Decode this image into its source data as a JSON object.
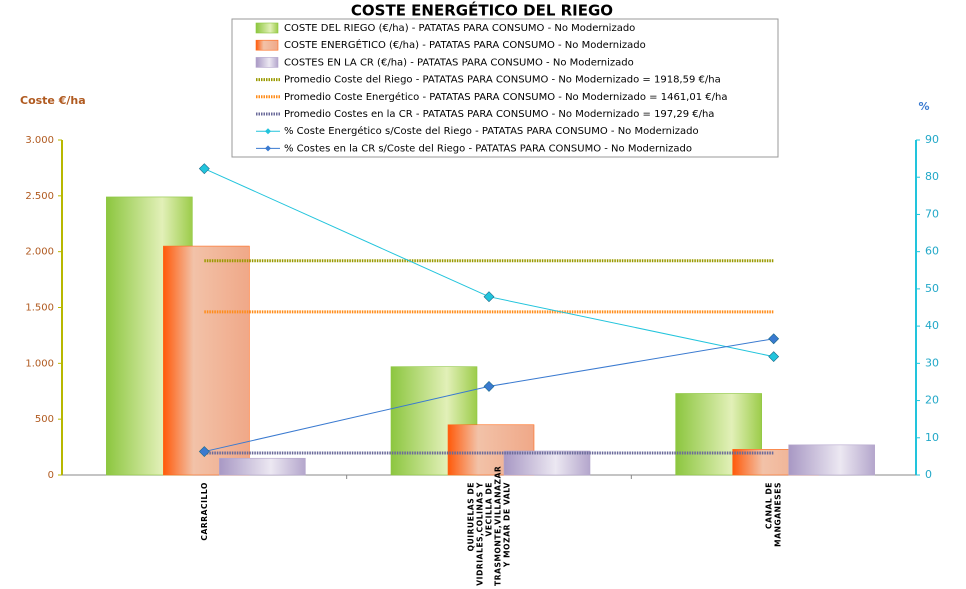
{
  "chart_data": {
    "type": "bar",
    "title": "COSTE ENERGÉTICO DEL RIEGO",
    "ylabel": "Coste €/ha",
    "y2label": "%",
    "categories": [
      "CARRACILLO",
      "QUIRUELAS DE VIDRIALES,COLINAS Y VECILLA DE TRASMONTE,VILLANAZAR Y MOZAR DE VALV",
      "CANAL DE MANGANESES"
    ],
    "ylim": [
      0,
      3000
    ],
    "yticks": [
      0,
      500,
      {
        "value": 1000,
        "label": "1.000"
      },
      {
        "value": 1500,
        "label": "1.500"
      },
      {
        "value": 2000,
        "label": "2.000"
      },
      {
        "value": 2500,
        "label": "2.500"
      },
      {
        "value": 3000,
        "label": "3.000"
      }
    ],
    "y2lim": [
      0,
      90
    ],
    "y2ticks": [
      0,
      10,
      20,
      30,
      40,
      50,
      60,
      70,
      80,
      90
    ],
    "series": [
      {
        "name": "COSTE DEL RIEGO (€/ha) - PATATAS PARA CONSUMO - No Modernizado",
        "type": "bar",
        "color": "#8cc63f",
        "values": [
          2490,
          970,
          730
        ]
      },
      {
        "name": "COSTE ENERGÉTICO (€/ha) - PATATAS PARA CONSUMO - No Modernizado",
        "type": "bar",
        "color": "#ff6a1a",
        "values": [
          2050,
          450,
          230
        ]
      },
      {
        "name": "COSTES EN LA CR (€/ha) - PATATAS PARA CONSUMO - No Modernizado",
        "type": "bar",
        "color": "#b4a6cc",
        "values": [
          150,
          215,
          270
        ]
      },
      {
        "name": "Promedio Coste del Riego - PATATAS PARA CONSUMO - No Modernizado = 1918,59 €/ha",
        "type": "hline",
        "color": "#9a9a00",
        "value": 1918.59
      },
      {
        "name": "Promedio Coste Energético - PATATAS PARA CONSUMO - No Modernizado = 1461,01 €/ha",
        "type": "hline",
        "color": "#ff8c1a",
        "value": 1461.01
      },
      {
        "name": "Promedio Costes en la CR - PATATAS PARA CONSUMO - No Modernizado = 197,29 €/ha",
        "type": "hline",
        "color": "#6a6a9a",
        "value": 197.29
      },
      {
        "name": "% Coste Energético s/Coste del Riego - PATATAS PARA CONSUMO - No Modernizado",
        "type": "line",
        "axis": "y2",
        "color": "#22c4dc",
        "values": [
          82.3,
          47.9,
          31.8
        ]
      },
      {
        "name": "% Costes en la CR s/Coste del Riego - PATATAS PARA CONSUMO - No Modernizado",
        "type": "line",
        "axis": "y2",
        "color": "#3a7ad0",
        "values": [
          6.3,
          23.8,
          36.6
        ]
      }
    ]
  }
}
